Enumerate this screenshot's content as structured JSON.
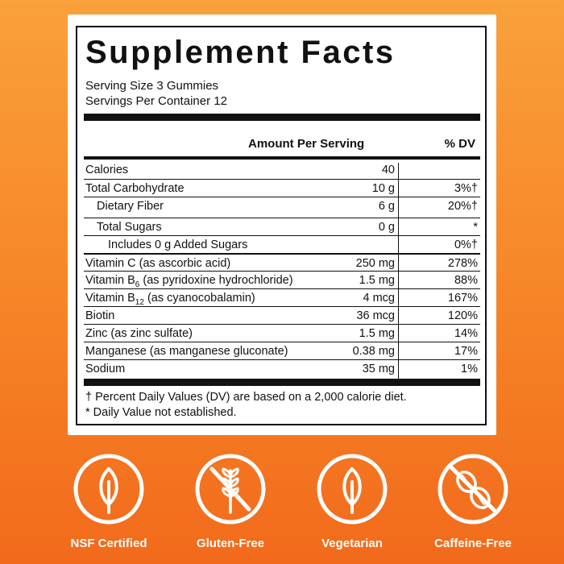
{
  "panel": {
    "title": "Supplement Facts",
    "serving_size": "Serving Size 3 Gummies",
    "servings_per_container": "Servings Per Container 12",
    "header_amount": "Amount Per Serving",
    "header_dv": "% DV",
    "rows": [
      {
        "name": "Calories",
        "amount": "40",
        "dv": ""
      },
      {
        "name": "Total Carbohydrate",
        "amount": "10 g",
        "dv": "3%†"
      },
      {
        "name": "Dietary Fiber",
        "amount": "6 g",
        "dv": "20%†"
      },
      {
        "name": "Total Sugars",
        "amount": "0 g",
        "dv": "*"
      },
      {
        "name": "Includes 0 g Added Sugars",
        "amount": "",
        "dv": "0%†"
      },
      {
        "name": "Vitamin C (as ascorbic acid)",
        "amount": "250 mg",
        "dv": "278%"
      },
      {
        "name_pre": "Vitamin B",
        "name_sub": "6",
        "name_post": " (as pyridoxine hydrochloride)",
        "amount": "1.5 mg",
        "dv": "88%"
      },
      {
        "name_pre": "Vitamin B",
        "name_sub": "12",
        "name_post": " (as cyanocobalamin)",
        "amount": "4 mcg",
        "dv": "167%"
      },
      {
        "name": "Biotin",
        "amount": "36 mcg",
        "dv": "120%"
      },
      {
        "name": "Zinc (as zinc sulfate)",
        "amount": "1.5 mg",
        "dv": "14%"
      },
      {
        "name": "Manganese (as manganese gluconate)",
        "amount": "0.38 mg",
        "dv": "17%"
      },
      {
        "name": "Sodium",
        "amount": "35 mg",
        "dv": "1%"
      }
    ],
    "footnote_1": "† Percent Daily Values (DV) are based on a 2,000 calorie diet.",
    "footnote_2": "* Daily Value not established."
  },
  "badges": [
    {
      "label": "NSF Certified",
      "icon": "leaf-icon"
    },
    {
      "label": "Gluten-Free",
      "icon": "wheat-crossed-icon"
    },
    {
      "label": "Vegetarian",
      "icon": "leaf-icon"
    },
    {
      "label": "Caffeine-Free",
      "icon": "coffee-bean-crossed-icon"
    }
  ],
  "colors": {
    "background_top": "#f9a13a",
    "background_bottom": "#f26a1b",
    "panel_ink": "#111111",
    "badge_white": "#ffffff"
  }
}
